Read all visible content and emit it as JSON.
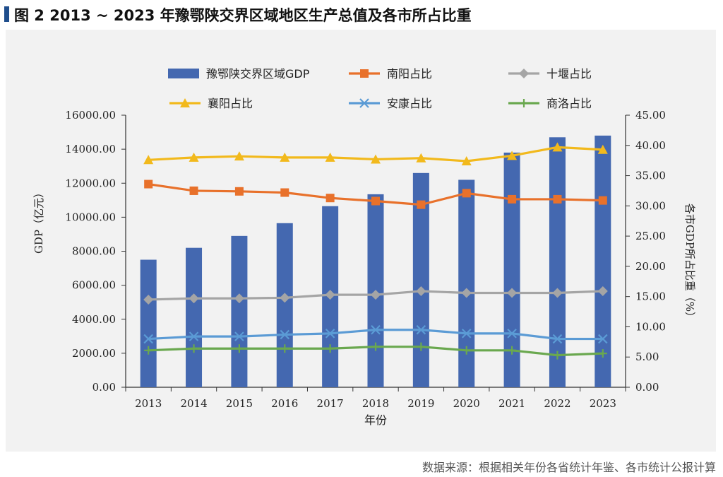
{
  "header": {
    "title": "图 2   2013 ~ 2023 年豫鄂陕交界区域地区生产总值及各市所占比重"
  },
  "footer": {
    "source": "数据来源：根据相关年份各省统计年鉴、各市统计公报计算"
  },
  "colors": {
    "bar": "#4468b0",
    "nanyang": "#e8712b",
    "shiyan": "#a5a5a5",
    "xiangyang": "#f2b91c",
    "ankang": "#5b9bd5",
    "shangluo": "#6aa84f",
    "panel_bg": "#f2f2f2",
    "accent": "#1f4e8c"
  },
  "chart_data": {
    "type": "bar",
    "categories": [
      "2013",
      "2014",
      "2015",
      "2016",
      "2017",
      "2018",
      "2019",
      "2020",
      "2021",
      "2022",
      "2023"
    ],
    "xlabel": "年份",
    "ylabel": "GDP（亿元）",
    "y2label": "各市GDP所占比重（%）",
    "ylim": [
      0,
      16000
    ],
    "y2lim": [
      0,
      45
    ],
    "yticks": [
      "0.00",
      "2000.00",
      "4000.00",
      "6000.00",
      "8000.00",
      "10000.00",
      "12000.00",
      "14000.00",
      "16000.00"
    ],
    "y2ticks": [
      "0.00",
      "5.00",
      "10.00",
      "15.00",
      "20.00",
      "25.00",
      "30.00",
      "35.00",
      "40.00",
      "45.00"
    ],
    "bar_series": {
      "name": "豫鄂陕交界区域GDP",
      "values": [
        7500,
        8200,
        8900,
        9650,
        10650,
        11350,
        12600,
        12200,
        13800,
        14700,
        14800
      ]
    },
    "line_series": [
      {
        "name": "南阳占比",
        "marker": "square",
        "values": [
          33.6,
          32.5,
          32.4,
          32.2,
          31.3,
          30.8,
          30.2,
          32.1,
          31.1,
          31.1,
          30.9
        ]
      },
      {
        "name": "十堰占比",
        "marker": "diamond",
        "values": [
          14.5,
          14.7,
          14.7,
          14.8,
          15.3,
          15.3,
          15.9,
          15.6,
          15.6,
          15.6,
          15.9
        ]
      },
      {
        "name": "襄阳占比",
        "marker": "triangle",
        "values": [
          37.6,
          38.0,
          38.2,
          38.0,
          38.0,
          37.7,
          37.9,
          37.4,
          38.3,
          39.7,
          39.3
        ]
      },
      {
        "name": "安康占比",
        "marker": "x",
        "values": [
          8.0,
          8.4,
          8.4,
          8.7,
          8.9,
          9.5,
          9.5,
          8.9,
          8.9,
          8.0,
          8.0
        ]
      },
      {
        "name": "商洛占比",
        "marker": "plus",
        "values": [
          6.1,
          6.4,
          6.4,
          6.4,
          6.4,
          6.7,
          6.7,
          6.1,
          6.1,
          5.3,
          5.6
        ]
      }
    ],
    "legend_placement": "top",
    "grid": false
  }
}
